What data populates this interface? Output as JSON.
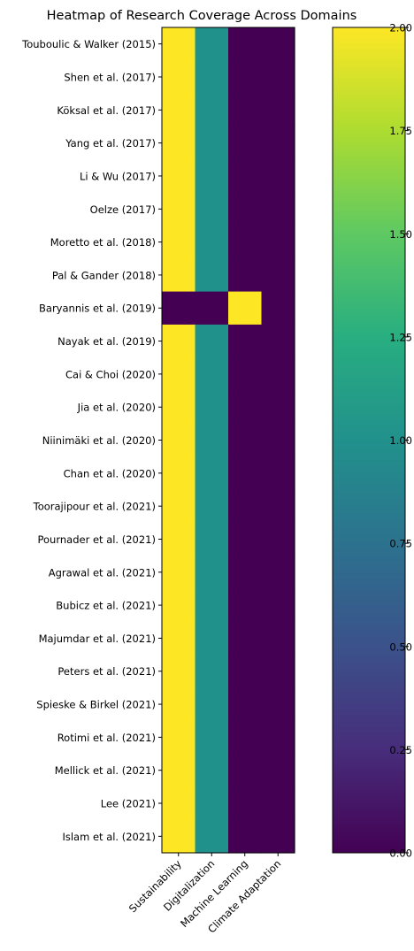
{
  "chart_data": {
    "type": "heatmap",
    "title": "Heatmap of Research Coverage Across Domains",
    "xlabel": "",
    "ylabel": "",
    "columns": [
      "Sustainability",
      "Digitalization",
      "Machine Learning",
      "Climate Adaptation"
    ],
    "rows": [
      "Touboulic & Walker (2015)",
      "Shen et al. (2017)",
      "Köksal et al. (2017)",
      "Yang et al. (2017)",
      "Li & Wu (2017)",
      "Oelze (2017)",
      "Moretto et al. (2018)",
      "Pal & Gander (2018)",
      "Baryannis et al. (2019)",
      "Nayak et al. (2019)",
      "Cai & Choi (2020)",
      "Jia et al. (2020)",
      "Niinimäki et al. (2020)",
      "Chan et al. (2020)",
      "Toorajipour et al. (2021)",
      "Pournader et al. (2021)",
      "Agrawal et al. (2021)",
      "Bubicz et al. (2021)",
      "Majumdar et al. (2021)",
      "Peters et al. (2021)",
      "Spieske & Birkel (2021)",
      "Rotimi et al. (2021)",
      "Mellick et al. (2021)",
      "Lee (2021)",
      "Islam et al. (2021)"
    ],
    "values": [
      [
        2,
        1,
        0,
        0
      ],
      [
        2,
        1,
        0,
        0
      ],
      [
        2,
        1,
        0,
        0
      ],
      [
        2,
        1,
        0,
        0
      ],
      [
        2,
        1,
        0,
        0
      ],
      [
        2,
        1,
        0,
        0
      ],
      [
        2,
        1,
        0,
        0
      ],
      [
        2,
        1,
        0,
        0
      ],
      [
        0,
        0,
        2,
        0
      ],
      [
        2,
        1,
        0,
        0
      ],
      [
        2,
        1,
        0,
        0
      ],
      [
        2,
        1,
        0,
        0
      ],
      [
        2,
        1,
        0,
        0
      ],
      [
        2,
        1,
        0,
        0
      ],
      [
        2,
        1,
        0,
        0
      ],
      [
        2,
        1,
        0,
        0
      ],
      [
        2,
        1,
        0,
        0
      ],
      [
        2,
        1,
        0,
        0
      ],
      [
        2,
        1,
        0,
        0
      ],
      [
        2,
        1,
        0,
        0
      ],
      [
        2,
        1,
        0,
        0
      ],
      [
        2,
        1,
        0,
        0
      ],
      [
        2,
        1,
        0,
        0
      ],
      [
        2,
        1,
        0,
        0
      ],
      [
        2,
        1,
        0,
        0
      ]
    ],
    "colormap": "viridis",
    "colorbar": {
      "range": [
        0,
        2
      ],
      "ticks": [
        "0.00",
        "0.25",
        "0.50",
        "0.75",
        "1.00",
        "1.25",
        "1.50",
        "1.75",
        "2.00"
      ]
    },
    "grid": false
  }
}
